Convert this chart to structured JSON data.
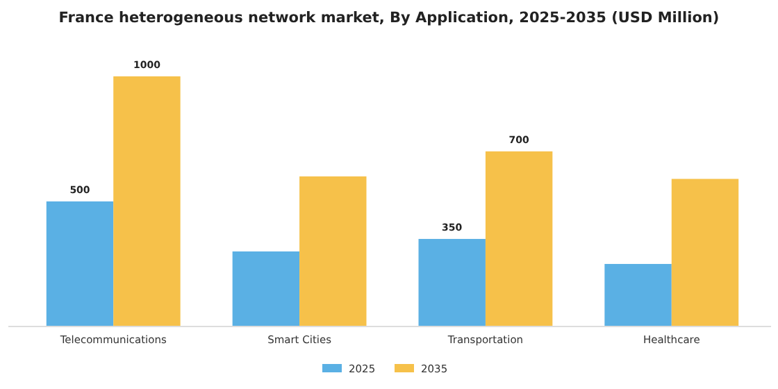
{
  "chart_data": {
    "type": "bar",
    "title": "France heterogeneous network market, By Application, 2025-2035 (USD Million)",
    "categories": [
      "Telecommunications",
      "Smart Cities",
      "Transportation",
      "Healthcare"
    ],
    "series": [
      {
        "name": "2025",
        "color": "#5ab0e4",
        "values": [
          500,
          300,
          350,
          250
        ],
        "value_labels": [
          "500",
          null,
          "350",
          null
        ]
      },
      {
        "name": "2035",
        "color": "#f6c14a",
        "values": [
          1000,
          600,
          700,
          590
        ],
        "value_labels": [
          "1000",
          null,
          "700",
          null
        ]
      }
    ],
    "legend": "bottom"
  }
}
